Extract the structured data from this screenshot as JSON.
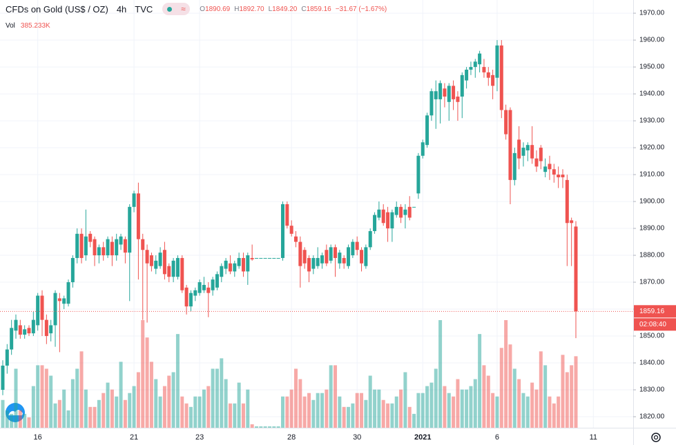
{
  "chart_data": {
    "type": "candlestick",
    "title": "CFDs on Gold (US$ / OZ)",
    "interval": "4h",
    "source": "TVC",
    "ohlc_prefixes": [
      "O",
      "H",
      "L",
      "C"
    ],
    "ohlc_value_labels": [
      "1890.69",
      "1892.70",
      "1849.20",
      "1859.16"
    ],
    "change": "−31.67 (−1.67%)",
    "volume_label": "Vol",
    "volume_value_label": "385.233K",
    "last_price_label": "1859.16",
    "countdown": "02:08:40",
    "up_color": "#26a69a",
    "down_color": "#ef5350",
    "candles": [
      [
        1830,
        1841,
        1828,
        1839
      ],
      [
        1839,
        1847,
        1836,
        1845
      ],
      [
        1845,
        1856,
        1843,
        1853
      ],
      [
        1852,
        1858,
        1849,
        1856
      ],
      [
        1854,
        1856,
        1849,
        1850.5
      ],
      [
        1850.5,
        1854,
        1849,
        1852.5
      ],
      [
        1853,
        1854,
        1850,
        1851
      ],
      [
        1851,
        1859,
        1850,
        1856
      ],
      [
        1854,
        1866,
        1852,
        1865
      ],
      [
        1865,
        1867,
        1850,
        1856
      ],
      [
        1856,
        1858,
        1847,
        1850
      ],
      [
        1851,
        1856,
        1848,
        1854
      ],
      [
        1854,
        1867,
        1846,
        1866
      ],
      [
        1864,
        1866,
        1844,
        1863
      ],
      [
        1862,
        1865,
        1860,
        1864
      ],
      [
        1862,
        1871,
        1861,
        1870
      ],
      [
        1870,
        1880,
        1868,
        1879
      ],
      [
        1879,
        1890,
        1877,
        1888
      ],
      [
        1888,
        1890,
        1877,
        1879
      ],
      [
        1880,
        1897,
        1878,
        1887
      ],
      [
        1888,
        1889,
        1883,
        1885
      ],
      [
        1886,
        1887,
        1876,
        1880
      ],
      [
        1880,
        1884,
        1877,
        1883
      ],
      [
        1883,
        1885,
        1878,
        1880
      ],
      [
        1880,
        1887,
        1879,
        1886
      ],
      [
        1885,
        1887,
        1876,
        1880
      ],
      [
        1880,
        1888,
        1878,
        1886
      ],
      [
        1884,
        1888,
        1882,
        1887
      ],
      [
        1886,
        1887,
        1877,
        1881
      ],
      [
        1881,
        1899,
        1863,
        1898
      ],
      [
        1898,
        1904,
        1896,
        1903
      ],
      [
        1903,
        1907,
        1871,
        1886
      ],
      [
        1886,
        1888,
        1856,
        1882
      ],
      [
        1882,
        1884,
        1855,
        1877
      ],
      [
        1880,
        1881,
        1874,
        1876
      ],
      [
        1875,
        1880,
        1873,
        1878
      ],
      [
        1876,
        1883,
        1875,
        1881
      ],
      [
        1882,
        1885,
        1871,
        1873
      ],
      [
        1876,
        1877,
        1870,
        1872
      ],
      [
        1872,
        1879,
        1870,
        1878
      ],
      [
        1872,
        1880,
        1871,
        1879
      ],
      [
        1879,
        1880,
        1866,
        1867
      ],
      [
        1868,
        1869,
        1858,
        1861
      ],
      [
        1861,
        1867,
        1859,
        1866
      ],
      [
        1865,
        1868,
        1863,
        1867
      ],
      [
        1866,
        1871,
        1865,
        1870
      ],
      [
        1867,
        1872,
        1866,
        1869
      ],
      [
        1868,
        1870,
        1857,
        1866
      ],
      [
        1867,
        1872,
        1865,
        1871
      ],
      [
        1868,
        1874,
        1867,
        1873
      ],
      [
        1872,
        1877,
        1870,
        1876
      ],
      [
        1875,
        1879,
        1873,
        1878
      ],
      [
        1877,
        1880,
        1873,
        1874
      ],
      [
        1874,
        1878,
        1872,
        1877
      ],
      [
        1876,
        1881,
        1875,
        1879
      ],
      [
        1879,
        1881,
        1872,
        1874
      ],
      [
        1874,
        1881,
        1869,
        1880
      ],
      [
        1879,
        1884,
        1878,
        1878.5
      ],
      [
        1879,
        1879,
        1879,
        1879
      ],
      [
        1879,
        1879,
        1879,
        1879
      ],
      [
        1879,
        1879,
        1879,
        1879
      ],
      [
        1879,
        1879,
        1879,
        1879
      ],
      [
        1879,
        1879,
        1879,
        1879
      ],
      [
        1879,
        1879,
        1879,
        1879
      ],
      [
        1879,
        1900,
        1878,
        1899
      ],
      [
        1899,
        1900,
        1890,
        1891
      ],
      [
        1891,
        1893,
        1887,
        1888
      ],
      [
        1887,
        1889,
        1883,
        1885
      ],
      [
        1885,
        1887,
        1868,
        1876
      ],
      [
        1882,
        1883,
        1875,
        1877
      ],
      [
        1879,
        1880,
        1870,
        1874
      ],
      [
        1875,
        1880,
        1873,
        1879
      ],
      [
        1876,
        1883,
        1875,
        1879
      ],
      [
        1877,
        1881,
        1875,
        1880
      ],
      [
        1882,
        1884,
        1876,
        1877
      ],
      [
        1878,
        1884,
        1877,
        1883
      ],
      [
        1883,
        1884,
        1872,
        1879
      ],
      [
        1877,
        1882,
        1875,
        1881
      ],
      [
        1879,
        1880,
        1875,
        1877
      ],
      [
        1876,
        1884,
        1875,
        1883
      ],
      [
        1880,
        1886,
        1879,
        1885
      ],
      [
        1885,
        1887,
        1880,
        1882
      ],
      [
        1882,
        1883,
        1874,
        1877
      ],
      [
        1876,
        1884,
        1875,
        1883
      ],
      [
        1883,
        1890,
        1882,
        1889
      ],
      [
        1889,
        1896,
        1888,
        1895
      ],
      [
        1894,
        1900,
        1893,
        1897
      ],
      [
        1897,
        1899,
        1891,
        1892
      ],
      [
        1896,
        1898,
        1885,
        1890
      ],
      [
        1890,
        1897,
        1885,
        1896
      ],
      [
        1895,
        1900,
        1894,
        1898
      ],
      [
        1898,
        1899,
        1892,
        1894
      ],
      [
        1895,
        1899,
        1890,
        1897
      ],
      [
        1898,
        1902,
        1893,
        1894
      ],
      [
        1898,
        1898,
        1898,
        1898
      ],
      [
        1903,
        1918,
        1901,
        1917
      ],
      [
        1917,
        1923,
        1916,
        1922
      ],
      [
        1921,
        1933,
        1920,
        1932
      ],
      [
        1932,
        1942,
        1930,
        1941
      ],
      [
        1938,
        1945,
        1927,
        1941
      ],
      [
        1938,
        1945,
        1929,
        1944
      ],
      [
        1942,
        1944,
        1935,
        1939
      ],
      [
        1937,
        1944,
        1930,
        1943
      ],
      [
        1943,
        1945,
        1934,
        1938
      ],
      [
        1939,
        1941,
        1930,
        1937
      ],
      [
        1939,
        1948,
        1931,
        1947
      ],
      [
        1945,
        1950,
        1942,
        1949
      ],
      [
        1949,
        1952,
        1947,
        1950
      ],
      [
        1950,
        1953,
        1946,
        1952
      ],
      [
        1951,
        1956,
        1948,
        1955
      ],
      [
        1950,
        1953,
        1946,
        1948
      ],
      [
        1948,
        1950,
        1943,
        1946
      ],
      [
        1947,
        1949,
        1938,
        1943
      ],
      [
        1946,
        1960,
        1941,
        1958
      ],
      [
        1958,
        1960,
        1931,
        1934
      ],
      [
        1934,
        1936,
        1923,
        1925
      ],
      [
        1934,
        1935,
        1899,
        1908
      ],
      [
        1908,
        1920,
        1906,
        1918
      ],
      [
        1923,
        1928,
        1912,
        1916
      ],
      [
        1917,
        1922,
        1913,
        1920
      ],
      [
        1919,
        1922,
        1915,
        1921
      ],
      [
        1921,
        1928,
        1914,
        1916
      ],
      [
        1916,
        1919,
        1911,
        1913
      ],
      [
        1920,
        1921,
        1912,
        1915
      ],
      [
        1911,
        1916,
        1909,
        1913
      ],
      [
        1914,
        1917,
        1908,
        1912
      ],
      [
        1912,
        1914,
        1907,
        1910
      ],
      [
        1910,
        1913,
        1905,
        1909
      ],
      [
        1910,
        1912,
        1905,
        1909
      ],
      [
        1908,
        1910,
        1876,
        1892
      ],
      [
        1893,
        1894,
        1876,
        1892
      ],
      [
        1890.69,
        1892.7,
        1849.2,
        1859.16
      ]
    ],
    "volume": [
      149600,
      93500,
      74800,
      317900,
      93500,
      74800,
      56100,
      224400,
      336600,
      336600,
      317900,
      280500,
      130900,
      149600,
      205700,
      93500,
      261800,
      317900,
      411400,
      205700,
      112200,
      112200,
      149600,
      187000,
      243100,
      205700,
      168300,
      355300,
      149600,
      187000,
      224400,
      299200,
      579700,
      486200,
      355300,
      261800,
      168300,
      224400,
      280500,
      299200,
      504900,
      168300,
      130900,
      112200,
      168300,
      168300,
      205700,
      224400,
      317900,
      317900,
      374000,
      261800,
      130900,
      130900,
      243100,
      130900,
      205700,
      18700,
      7480,
      7480,
      7480,
      7480,
      7480,
      7480,
      168300,
      168300,
      205700,
      317900,
      261800,
      168300,
      187000,
      149600,
      187000,
      187000,
      205700,
      336600,
      336600,
      168300,
      112200,
      112200,
      130900,
      187000,
      187000,
      149600,
      280500,
      205700,
      205700,
      149600,
      130900,
      130900,
      168300,
      205700,
      299200,
      112200,
      74800,
      187000,
      187000,
      224400,
      243100,
      317900,
      579700,
      224400,
      187000,
      168300,
      261800,
      205700,
      205700,
      224400,
      261800,
      504900,
      336600,
      280500,
      187000,
      168300,
      430100,
      579700,
      448800,
      317900,
      261800,
      187000,
      168300,
      243100,
      205700,
      411400,
      336600,
      168300,
      130900,
      168300,
      392700,
      299200,
      336600,
      385233
    ],
    "xlim": [
      -0.63,
      144.1
    ],
    "xticks": [
      {
        "value": 8,
        "label": "16"
      },
      {
        "value": 30,
        "label": "21"
      },
      {
        "value": 45,
        "label": "23"
      },
      {
        "value": 66,
        "label": "28"
      },
      {
        "value": 81,
        "label": "30"
      },
      {
        "value": 96,
        "label": "2021"
      },
      {
        "value": 113,
        "label": "6"
      },
      {
        "value": 135,
        "label": "11"
      }
    ],
    "ylim": [
      1815.9,
      1974.9
    ],
    "yticks": [
      {
        "value": 1820,
        "label": "1820.00"
      },
      {
        "value": 1830,
        "label": "1830.00"
      },
      {
        "value": 1840,
        "label": "1840.00"
      },
      {
        "value": 1850,
        "label": "1850.00"
      },
      {
        "value": 1860,
        "label": "1860.00"
      },
      {
        "value": 1870,
        "label": "1870.00"
      },
      {
        "value": 1880,
        "label": "1880.00"
      },
      {
        "value": 1890,
        "label": "1890.00"
      },
      {
        "value": 1900,
        "label": "1900.00"
      },
      {
        "value": 1910,
        "label": "1910.00"
      },
      {
        "value": 1920,
        "label": "1920.00"
      },
      {
        "value": 1930,
        "label": "1930.00"
      },
      {
        "value": 1940,
        "label": "1940.00"
      },
      {
        "value": 1950,
        "label": "1950.00"
      },
      {
        "value": 1960,
        "label": "1960.00"
      },
      {
        "value": 1970,
        "label": "1970.00"
      }
    ],
    "grid": true
  }
}
